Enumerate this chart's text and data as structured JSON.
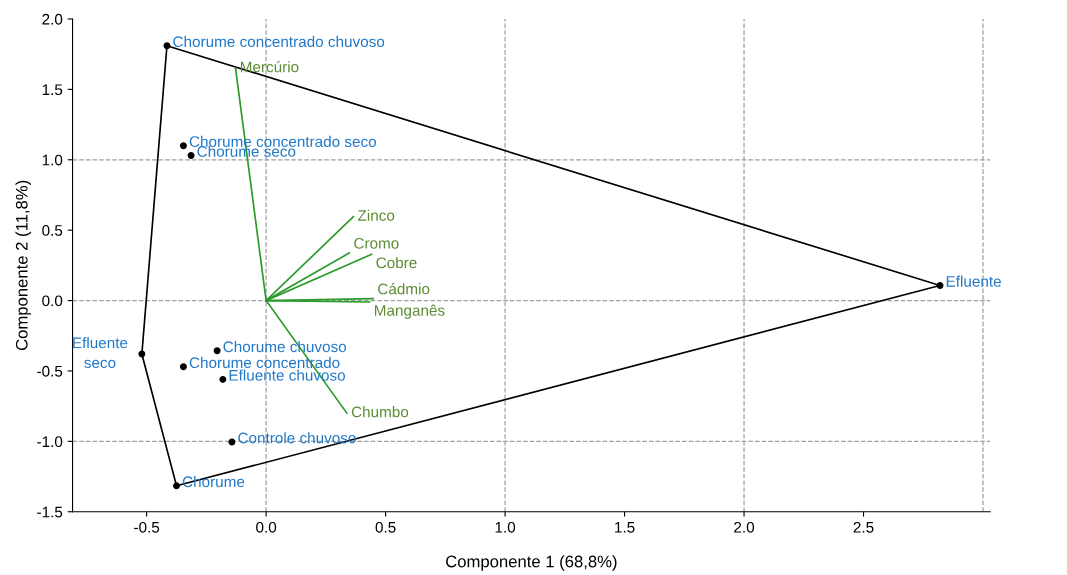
{
  "chart_data": {
    "type": "scatter",
    "xlabel": "Componente 1 (68,8%)",
    "ylabel": "Componente 2 (11,8%)",
    "xlim": [
      -0.81,
      3.03
    ],
    "ylim": [
      -1.5,
      2.0
    ],
    "xticks": [
      -0.5,
      {
        "value": 0,
        "label": "0.0"
      },
      0.5,
      {
        "value": 1,
        "label": "1.0"
      },
      1.5,
      {
        "value": 2,
        "label": "2.0"
      },
      2.5
    ],
    "yticks": [
      -1.5,
      {
        "value": -1,
        "label": "-1.0"
      },
      -0.5,
      {
        "value": 0,
        "label": "0.0"
      },
      0.5,
      {
        "value": 1,
        "label": "1.0"
      },
      1.5,
      {
        "value": 2,
        "label": "2.0"
      }
    ],
    "grid": false,
    "legend": false,
    "ref_lines": [
      {
        "axis": "x",
        "value": 0,
        "color": "#a0a0a0",
        "line_style": "dashed"
      },
      {
        "axis": "x",
        "value": 1,
        "color": "#a0a0a0",
        "line_style": "dashed"
      },
      {
        "axis": "x",
        "value": 2,
        "color": "#a0a0a0",
        "line_style": "dashed"
      },
      {
        "axis": "x",
        "value": 3,
        "color": "#a0a0a0",
        "line_style": "dashed"
      },
      {
        "axis": "y",
        "value": 1,
        "color": "#a0a0a0",
        "line_style": "dashed"
      },
      {
        "axis": "y",
        "value": 0,
        "color": "#a0a0a0",
        "line_style": "dashed"
      },
      {
        "axis": "y",
        "value": -1,
        "color": "#a0a0a0",
        "line_style": "dashed"
      }
    ],
    "series": [
      {
        "type": "line",
        "color": "#000000",
        "x": [
          -0.415,
          2.82
        ],
        "values": [
          1.81,
          0.107
        ]
      },
      {
        "type": "line",
        "color": "#000000",
        "x": [
          -0.375,
          2.82
        ],
        "values": [
          -1.316,
          0.107
        ]
      },
      {
        "type": "line",
        "color": "#000000",
        "x": [
          -0.52,
          -0.375
        ],
        "values": [
          -0.38,
          -1.316
        ]
      },
      {
        "type": "line",
        "color": "#000000",
        "x": [
          -0.52,
          -0.415
        ],
        "values": [
          -0.38,
          1.81
        ]
      },
      {
        "type": "line",
        "name": "Mercúrio",
        "color": "#2a9a2a",
        "x": [
          0,
          -0.128
        ],
        "values": [
          0,
          1.65
        ]
      },
      {
        "type": "line",
        "name": "Zinco",
        "color": "#2a9a2a",
        "x": [
          0,
          0.365
        ],
        "values": [
          0,
          0.595
        ]
      },
      {
        "type": "line",
        "name": "Cromo",
        "color": "#2a9a2a",
        "x": [
          0,
          0.348
        ],
        "values": [
          0,
          0.338
        ]
      },
      {
        "type": "line",
        "name": "Cobre",
        "color": "#2a9a2a",
        "x": [
          0,
          0.441
        ],
        "values": [
          0,
          0.328
        ]
      },
      {
        "type": "line",
        "name": "Cádmio",
        "color": "#2a9a2a",
        "x": [
          0,
          0.448
        ],
        "values": [
          0,
          0.014
        ]
      },
      {
        "type": "line",
        "name": "Manganês",
        "color": "#2a9a2a",
        "x": [
          0,
          0.433
        ],
        "values": [
          0,
          -0.01
        ]
      },
      {
        "type": "line",
        "name": "Chumbo",
        "color": "#2a9a2a",
        "x": [
          0,
          0.338
        ],
        "values": [
          0,
          -0.8
        ]
      },
      {
        "color": "#000000",
        "marker": "circle",
        "x": [
          -0.415,
          -0.346,
          -0.314,
          2.82,
          -0.52,
          -0.205,
          -0.346,
          -0.181,
          -0.143,
          -0.375
        ],
        "values": [
          1.81,
          1.1,
          1.03,
          0.107,
          -0.38,
          -0.357,
          -0.47,
          -0.56,
          -1.005,
          -1.316
        ]
      }
    ],
    "annotations": [
      {
        "text": "Chorume concentrado chuvoso",
        "x": -0.415,
        "y": 1.81
      },
      {
        "text": "Chorume concentrado seco",
        "x": -0.346,
        "y": 1.1
      },
      {
        "text": "Chorume seco",
        "x": -0.314,
        "y": 1.03
      },
      {
        "text": "Efluente",
        "x": 2.82,
        "y": 0.107
      },
      {
        "text": "Efluente\nseco",
        "x": -0.52,
        "y": -0.38
      },
      {
        "text": "Chorume chuvoso",
        "x": -0.205,
        "y": -0.357
      },
      {
        "text": "Chorume concentrado",
        "x": -0.346,
        "y": -0.47
      },
      {
        "text": "Efluente chuvoso",
        "x": -0.181,
        "y": -0.56
      },
      {
        "text": "Controle chuvoso",
        "x": -0.143,
        "y": -1.005
      },
      {
        "text": "Chorume",
        "x": -0.375,
        "y": -1.316
      }
    ]
  }
}
